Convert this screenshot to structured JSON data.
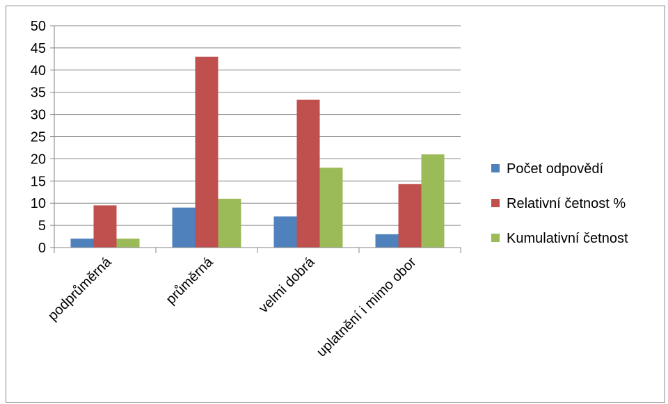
{
  "chart_data": {
    "type": "bar",
    "title": "",
    "xlabel": "",
    "ylabel": "",
    "categories": [
      "podprůměrná",
      "průměrná",
      "velmi dobrá",
      "uplatnění i mimo obor"
    ],
    "series": [
      {
        "name": "Počet odpovědí",
        "color": "#4F81BD",
        "values": [
          2,
          9,
          7,
          3
        ]
      },
      {
        "name": "Relativní četnost %",
        "color": "#C0504D",
        "values": [
          9.5,
          43,
          33.3,
          14.3
        ]
      },
      {
        "name": "Kumulativní četnost",
        "color": "#9BBB59",
        "values": [
          2,
          11,
          18,
          21
        ]
      }
    ],
    "ylim": [
      0,
      50
    ],
    "yticks": [
      "0",
      "5",
      "10",
      "15",
      "20",
      "25",
      "30",
      "35",
      "40",
      "45",
      "50"
    ],
    "grid": true,
    "legend_position": "right"
  }
}
